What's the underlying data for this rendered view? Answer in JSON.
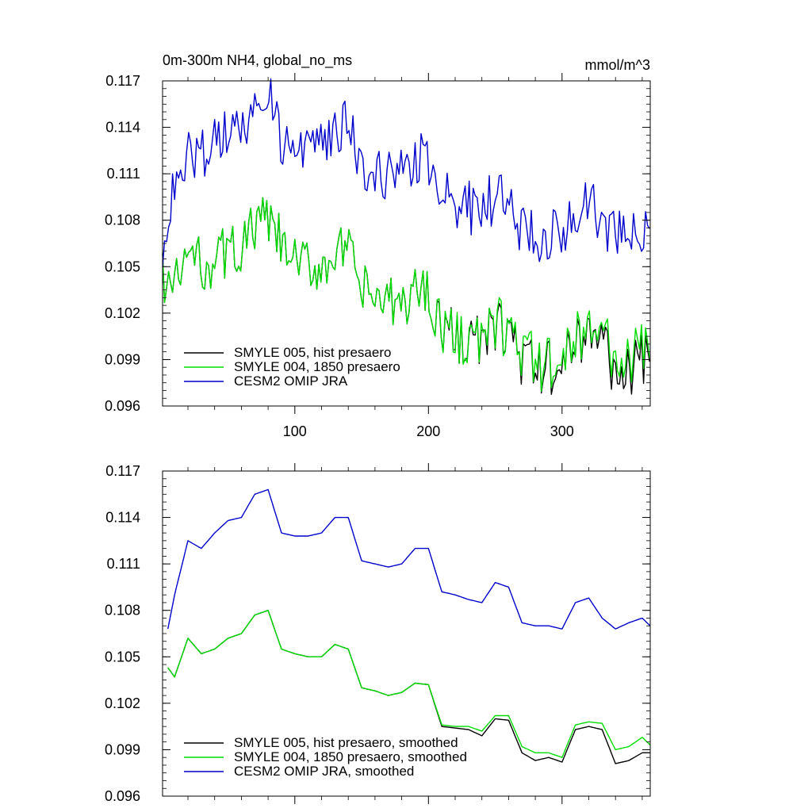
{
  "colors": {
    "smyle005": "#000000",
    "smyle004": "#00dd00",
    "cesm2": "#0000cc"
  },
  "chart_data": [
    {
      "type": "line",
      "title": "0m-300m NH4, global_no_ms",
      "units": "mmol/m^3",
      "xlabel": "",
      "ylabel": "",
      "xlim": [
        1,
        366
      ],
      "ylim": [
        0.096,
        0.117
      ],
      "x_ticks": [
        100,
        200,
        300
      ],
      "x_tick_labels": [
        "100",
        "200",
        "300"
      ],
      "y_ticks": [
        0.096,
        0.099,
        0.102,
        0.105,
        0.108,
        0.111,
        0.114,
        0.117
      ],
      "y_tick_labels": [
        "0.096",
        "0.099",
        "0.102",
        "0.105",
        "0.108",
        "0.111",
        "0.114",
        "0.117"
      ],
      "grid": false,
      "legend_position": "bottom-left",
      "noisy": true,
      "series": [
        {
          "name": "SMYLE 005, hist presaero",
          "color": "#000000",
          "x": [
            1,
            10,
            20,
            30,
            40,
            50,
            60,
            70,
            80,
            90,
            100,
            110,
            120,
            130,
            140,
            150,
            160,
            170,
            180,
            190,
            200,
            210,
            220,
            230,
            240,
            250,
            260,
            270,
            280,
            290,
            300,
            310,
            320,
            330,
            340,
            350,
            360,
            366
          ],
          "y": [
            0.1045,
            0.1035,
            0.106,
            0.105,
            0.1055,
            0.106,
            0.1062,
            0.1075,
            0.108,
            0.1063,
            0.1052,
            0.105,
            0.105,
            0.106,
            0.1058,
            0.1035,
            0.103,
            0.1025,
            0.1025,
            0.1035,
            0.1035,
            0.101,
            0.1005,
            0.1005,
            0.1,
            0.101,
            0.101,
            0.099,
            0.0983,
            0.0985,
            0.0983,
            0.1005,
            0.1007,
            0.1005,
            0.098,
            0.0983,
            0.0988,
            0.0988
          ]
        },
        {
          "name": "SMYLE 004, 1850 presaero",
          "color": "#00dd00",
          "x": [
            1,
            10,
            20,
            30,
            40,
            50,
            60,
            70,
            80,
            90,
            100,
            110,
            120,
            130,
            140,
            150,
            160,
            170,
            180,
            190,
            200,
            210,
            220,
            230,
            240,
            250,
            260,
            270,
            280,
            290,
            300,
            310,
            320,
            330,
            340,
            350,
            360,
            366
          ],
          "y": [
            0.1045,
            0.1035,
            0.106,
            0.105,
            0.1055,
            0.106,
            0.1062,
            0.1075,
            0.108,
            0.1063,
            0.1052,
            0.105,
            0.105,
            0.106,
            0.1058,
            0.1035,
            0.103,
            0.1025,
            0.1025,
            0.1035,
            0.1035,
            0.101,
            0.1005,
            0.1005,
            0.1002,
            0.1012,
            0.1012,
            0.0992,
            0.0988,
            0.0988,
            0.0986,
            0.1008,
            0.1009,
            0.1008,
            0.0988,
            0.099,
            0.0998,
            0.0993
          ]
        },
        {
          "name": "CESM2 OMIP JRA",
          "color": "#0000cc",
          "x": [
            1,
            10,
            20,
            30,
            40,
            50,
            60,
            70,
            80,
            90,
            100,
            110,
            120,
            130,
            140,
            150,
            160,
            170,
            180,
            190,
            200,
            210,
            220,
            230,
            240,
            250,
            260,
            270,
            280,
            290,
            300,
            310,
            320,
            330,
            340,
            350,
            360,
            366
          ],
          "y": [
            0.1065,
            0.111,
            0.1125,
            0.112,
            0.113,
            0.1138,
            0.114,
            0.1155,
            0.116,
            0.113,
            0.1128,
            0.1128,
            0.1132,
            0.114,
            0.114,
            0.1115,
            0.1112,
            0.111,
            0.111,
            0.112,
            0.112,
            0.1095,
            0.109,
            0.1088,
            0.1085,
            0.1098,
            0.1095,
            0.1073,
            0.107,
            0.107,
            0.1068,
            0.1085,
            0.1088,
            0.108,
            0.1068,
            0.1072,
            0.1075,
            0.107
          ]
        }
      ]
    },
    {
      "type": "line",
      "title": "",
      "xlabel": "",
      "ylabel": "",
      "xlim": [
        1,
        366
      ],
      "ylim": [
        0.096,
        0.117
      ],
      "x_ticks": [
        100,
        200,
        300
      ],
      "x_tick_labels": [],
      "y_ticks": [
        0.096,
        0.099,
        0.102,
        0.105,
        0.108,
        0.111,
        0.114,
        0.117
      ],
      "y_tick_labels": [
        "0.096",
        "0.099",
        "0.102",
        "0.105",
        "0.108",
        "0.111",
        "0.114",
        "0.117"
      ],
      "grid": false,
      "legend_position": "bottom-left",
      "noisy": false,
      "series": [
        {
          "name": "SMYLE 005, hist presaero, smoothed",
          "color": "#000000",
          "x": [
            5,
            10,
            20,
            30,
            40,
            50,
            60,
            70,
            80,
            90,
            100,
            110,
            120,
            130,
            140,
            150,
            160,
            170,
            180,
            190,
            200,
            210,
            220,
            230,
            240,
            250,
            260,
            270,
            280,
            290,
            300,
            310,
            320,
            330,
            340,
            350,
            360,
            366
          ],
          "y": [
            0.1043,
            0.1037,
            0.1062,
            0.1052,
            0.1055,
            0.1062,
            0.1065,
            0.1077,
            0.108,
            0.1055,
            0.1052,
            0.105,
            0.105,
            0.1058,
            0.1055,
            0.103,
            0.1028,
            0.1025,
            0.1027,
            0.1033,
            0.1032,
            0.1005,
            0.1004,
            0.1003,
            0.0999,
            0.101,
            0.1009,
            0.0988,
            0.0983,
            0.0985,
            0.0982,
            0.1003,
            0.1005,
            0.1003,
            0.0981,
            0.0983,
            0.0988,
            0.0988
          ]
        },
        {
          "name": "SMYLE 004, 1850 presaero, smoothed",
          "color": "#00dd00",
          "x": [
            5,
            10,
            20,
            30,
            40,
            50,
            60,
            70,
            80,
            90,
            100,
            110,
            120,
            130,
            140,
            150,
            160,
            170,
            180,
            190,
            200,
            210,
            220,
            230,
            240,
            250,
            260,
            270,
            280,
            290,
            300,
            310,
            320,
            330,
            340,
            350,
            360,
            366
          ],
          "y": [
            0.1043,
            0.1037,
            0.1062,
            0.1052,
            0.1055,
            0.1062,
            0.1065,
            0.1077,
            0.108,
            0.1055,
            0.1052,
            0.105,
            0.105,
            0.1058,
            0.1055,
            0.103,
            0.1028,
            0.1025,
            0.1027,
            0.1033,
            0.1032,
            0.1006,
            0.1005,
            0.1005,
            0.1002,
            0.1012,
            0.1012,
            0.0992,
            0.0988,
            0.0988,
            0.0985,
            0.1006,
            0.1008,
            0.1007,
            0.099,
            0.0992,
            0.0998,
            0.0993
          ]
        },
        {
          "name": "CESM2 OMIP JRA, smoothed",
          "color": "#0000cc",
          "x": [
            5,
            10,
            20,
            30,
            40,
            50,
            60,
            70,
            80,
            90,
            100,
            110,
            120,
            130,
            140,
            150,
            160,
            170,
            180,
            190,
            200,
            210,
            220,
            230,
            240,
            250,
            260,
            270,
            280,
            290,
            300,
            310,
            320,
            330,
            340,
            350,
            360,
            366
          ],
          "y": [
            0.1068,
            0.109,
            0.1125,
            0.112,
            0.113,
            0.1138,
            0.114,
            0.1155,
            0.1158,
            0.113,
            0.1128,
            0.1128,
            0.113,
            0.114,
            0.114,
            0.1112,
            0.111,
            0.1108,
            0.111,
            0.112,
            0.112,
            0.1092,
            0.109,
            0.1087,
            0.1085,
            0.1098,
            0.1095,
            0.1072,
            0.107,
            0.107,
            0.1068,
            0.1085,
            0.1088,
            0.1075,
            0.1068,
            0.1072,
            0.1075,
            0.107
          ]
        }
      ]
    }
  ]
}
